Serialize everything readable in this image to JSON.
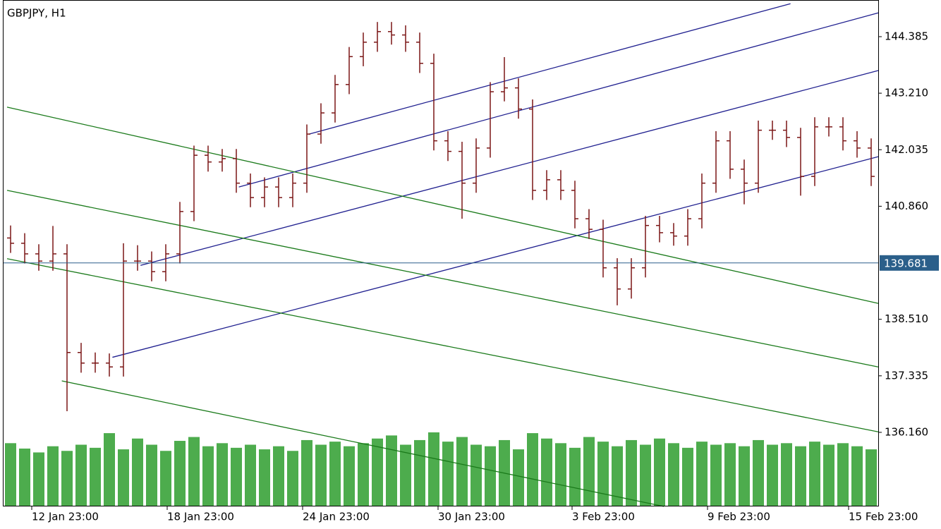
{
  "chart_data": {
    "type": "ohlc",
    "title": "GBPJPY, H1",
    "xlim": [
      0,
      62
    ],
    "ylim": [
      134.62,
      145.147
    ],
    "xticks": [
      {
        "value": 2.0,
        "label": "12 Jan 23:00"
      },
      {
        "value": 11.6,
        "label": "18 Jan 23:00"
      },
      {
        "value": 21.2,
        "label": "24 Jan 23:00"
      },
      {
        "value": 30.8,
        "label": "30 Jan 23:00"
      },
      {
        "value": 40.3,
        "label": "3 Feb 23:00"
      },
      {
        "value": 49.9,
        "label": "9 Feb 23:00"
      },
      {
        "value": 59.9,
        "label": "15 Feb 23:00"
      }
    ],
    "yticks": [
      144.385,
      {
        "value": 143.21,
        "label": "143.210"
      },
      142.035,
      {
        "value": 140.86,
        "label": "140.860"
      },
      {
        "value": 138.51,
        "label": "138.510"
      },
      137.335,
      {
        "value": 136.16,
        "label": "136.160"
      }
    ],
    "current_price": 139.681,
    "bar_color": "#7a1616",
    "volume_color": "#2e9e2e",
    "open": [
      140.2,
      140.09,
      139.87,
      139.72,
      139.87,
      137.82,
      137.6,
      137.6,
      137.52,
      139.72,
      139.72,
      139.5,
      139.87,
      140.75,
      141.92,
      141.78,
      141.85,
      141.34,
      141.04,
      141.26,
      141.04,
      141.34,
      142.36,
      142.8,
      143.39,
      143.97,
      144.27,
      144.49,
      144.42,
      144.27,
      143.83,
      142.22,
      142.0,
      141.34,
      142.07,
      143.24,
      143.32,
      142.88,
      141.19,
      141.41,
      141.19,
      140.6,
      140.38,
      139.58,
      139.14,
      139.58,
      140.46,
      140.31,
      140.24,
      140.6,
      141.34,
      142.22,
      141.63,
      141.34,
      142.44,
      142.44,
      142.29,
      141.48,
      142.51,
      142.51,
      142.22,
      142.07
    ],
    "high": [
      140.46,
      140.3,
      140.07,
      140.45,
      140.07,
      138.02,
      137.82,
      137.8,
      140.09,
      140.05,
      139.92,
      140.07,
      140.95,
      142.12,
      142.12,
      142.05,
      142.05,
      141.54,
      141.46,
      141.46,
      141.54,
      142.56,
      143.0,
      143.59,
      144.17,
      144.47,
      144.69,
      144.69,
      144.62,
      144.47,
      144.03,
      142.42,
      142.2,
      142.27,
      143.44,
      143.96,
      143.52,
      143.08,
      141.61,
      141.61,
      141.39,
      140.8,
      140.58,
      139.78,
      139.78,
      140.66,
      140.66,
      140.51,
      140.8,
      141.54,
      142.42,
      142.42,
      141.83,
      142.64,
      142.64,
      142.64,
      142.49,
      142.71,
      142.71,
      142.71,
      142.42,
      142.27
    ],
    "low": [
      139.89,
      139.67,
      139.52,
      139.52,
      136.6,
      137.4,
      137.4,
      137.32,
      137.32,
      139.52,
      139.3,
      139.3,
      139.67,
      140.55,
      141.58,
      141.58,
      141.14,
      140.84,
      140.84,
      140.84,
      140.84,
      141.14,
      142.16,
      142.6,
      143.19,
      143.77,
      144.07,
      144.22,
      144.07,
      143.63,
      142.02,
      141.8,
      140.6,
      141.14,
      141.87,
      143.04,
      142.68,
      140.99,
      140.99,
      140.99,
      140.4,
      140.18,
      139.38,
      138.8,
      138.94,
      139.38,
      140.11,
      140.04,
      140.04,
      140.4,
      141.14,
      141.43,
      140.9,
      141.14,
      142.24,
      142.09,
      141.08,
      141.28,
      142.31,
      142.02,
      141.87,
      141.28
    ],
    "close": [
      140.09,
      139.87,
      139.72,
      139.87,
      137.82,
      137.6,
      137.6,
      137.52,
      139.72,
      139.72,
      139.5,
      139.87,
      140.75,
      141.92,
      141.78,
      141.85,
      141.34,
      141.04,
      141.26,
      141.04,
      141.34,
      142.36,
      142.8,
      143.39,
      143.97,
      144.27,
      144.49,
      144.42,
      144.27,
      143.83,
      142.22,
      142.0,
      141.34,
      142.07,
      143.24,
      143.32,
      142.88,
      141.19,
      141.41,
      141.19,
      140.6,
      140.38,
      139.58,
      139.14,
      139.58,
      140.46,
      140.31,
      140.24,
      140.6,
      141.34,
      142.22,
      141.63,
      141.34,
      142.44,
      142.44,
      142.29,
      141.48,
      142.51,
      142.51,
      142.22,
      142.07,
      141.48
    ],
    "volume": [
      82,
      75,
      70,
      78,
      72,
      80,
      76,
      95,
      74,
      88,
      80,
      72,
      85,
      90,
      78,
      82,
      76,
      80,
      74,
      78,
      72,
      86,
      80,
      84,
      78,
      82,
      88,
      92,
      80,
      86,
      96,
      84,
      90,
      80,
      78,
      86,
      74,
      95,
      88,
      82,
      76,
      90,
      84,
      78,
      86,
      80,
      88,
      82,
      76,
      84,
      80,
      82,
      78,
      86,
      80,
      82,
      78,
      84,
      80,
      82,
      78,
      74
    ],
    "trendlines": [
      {
        "color": "#1f1f8f",
        "points": [
          [
            21.66,
            142.36
          ],
          [
            55.78,
            145.07
          ]
        ]
      },
      {
        "color": "#1f1f8f",
        "points": [
          [
            16.68,
            141.26
          ],
          [
            62,
            144.88
          ]
        ]
      },
      {
        "color": "#1f1f8f",
        "points": [
          [
            9.71,
            139.63
          ],
          [
            62,
            143.68
          ]
        ]
      },
      {
        "color": "#1f1f8f",
        "points": [
          [
            7.72,
            137.72
          ],
          [
            62,
            141.89
          ]
        ]
      },
      {
        "color": "#1a7a1a",
        "points": [
          [
            0.25,
            142.92
          ],
          [
            62,
            138.84
          ]
        ]
      },
      {
        "color": "#1a7a1a",
        "points": [
          [
            0.25,
            141.19
          ],
          [
            62,
            137.52
          ]
        ]
      },
      {
        "color": "#1a7a1a",
        "points": [
          [
            0.25,
            139.77
          ],
          [
            62,
            136.17
          ]
        ]
      },
      {
        "color": "#1a7a1a",
        "points": [
          [
            4.13,
            137.23
          ],
          [
            46.81,
            134.62
          ]
        ]
      }
    ]
  }
}
